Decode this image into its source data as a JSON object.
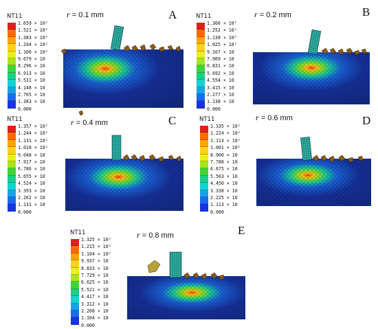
{
  "panels": [
    {
      "letter": "A",
      "r_prefix": "r",
      "r_value": "= 0.1 mm",
      "legend_title": "NT11",
      "legend_values": [
        "1.659 × 10²",
        "1.521 × 10²",
        "1.383 × 10²",
        "1.244 × 10²",
        "1.106 × 10²",
        "9.679 × 10",
        "8.296 × 10",
        "6.913 × 10",
        "5.531 × 10",
        "4.148 × 10",
        "2.765 × 10",
        "1.383 × 10",
        "0.000"
      ]
    },
    {
      "letter": "B",
      "r_prefix": "r",
      "r_value": "= 0.2 mm",
      "legend_title": "NT11",
      "legend_values": [
        "1.366 × 10²",
        "1.252 × 10²",
        "1.138 × 10²",
        "1.025 × 10²",
        "9.107 × 10",
        "7.969 × 10",
        "6.831 × 10",
        "5.692 × 10",
        "4.554 × 10",
        "3.415 × 10",
        "2.277 × 10",
        "1.138 × 10",
        "0.000"
      ]
    },
    {
      "letter": "C",
      "r_prefix": "r",
      "r_value": "= 0.4 mm",
      "legend_title": "NT11",
      "legend_values": [
        "1.357 × 10²",
        "1.244 × 10²",
        "1.131 × 10²",
        "1.018 × 10²",
        "9.048 × 10",
        "7.917 × 10",
        "6.786 × 10",
        "5.655 × 10",
        "4.524 × 10",
        "3.393 × 10",
        "2.262 × 10",
        "1.131 × 10",
        "0.000"
      ]
    },
    {
      "letter": "D",
      "r_prefix": "r",
      "r_value": "= 0.6 mm",
      "legend_title": "NT11",
      "legend_values": [
        "1.335 × 10²",
        "1.224 × 10²",
        "1.113 × 10²",
        "1.001 × 10²",
        "8.900 × 10",
        "7.788 × 10",
        "6.675 × 10",
        "5.563 × 10",
        "4.450 × 10",
        "3.338 × 10",
        "2.225 × 10",
        "1.113 × 10",
        "0.000"
      ]
    },
    {
      "letter": "E",
      "r_prefix": "r",
      "r_value": "= 0.8 mm",
      "legend_title": "NT11",
      "legend_values": [
        "1.325 × 10²",
        "1.215 × 10²",
        "1.104 × 10²",
        "9.937 × 10",
        "8.833 × 10",
        "7.729 × 10",
        "6.625 × 10",
        "5.521 × 10",
        "4.417 × 10",
        "3.312 × 10",
        "2.208 × 10",
        "1.104 × 10",
        "0.000"
      ]
    }
  ],
  "legend_colors": [
    "#e0201c",
    "#ff6a00",
    "#ffa500",
    "#ffd21a",
    "#e9f01a",
    "#a6e61e",
    "#3ed43c",
    "#19cf8a",
    "#14d2d2",
    "#17a3e6",
    "#1a6bf0",
    "#1a33e0",
    "#1212b4"
  ]
}
